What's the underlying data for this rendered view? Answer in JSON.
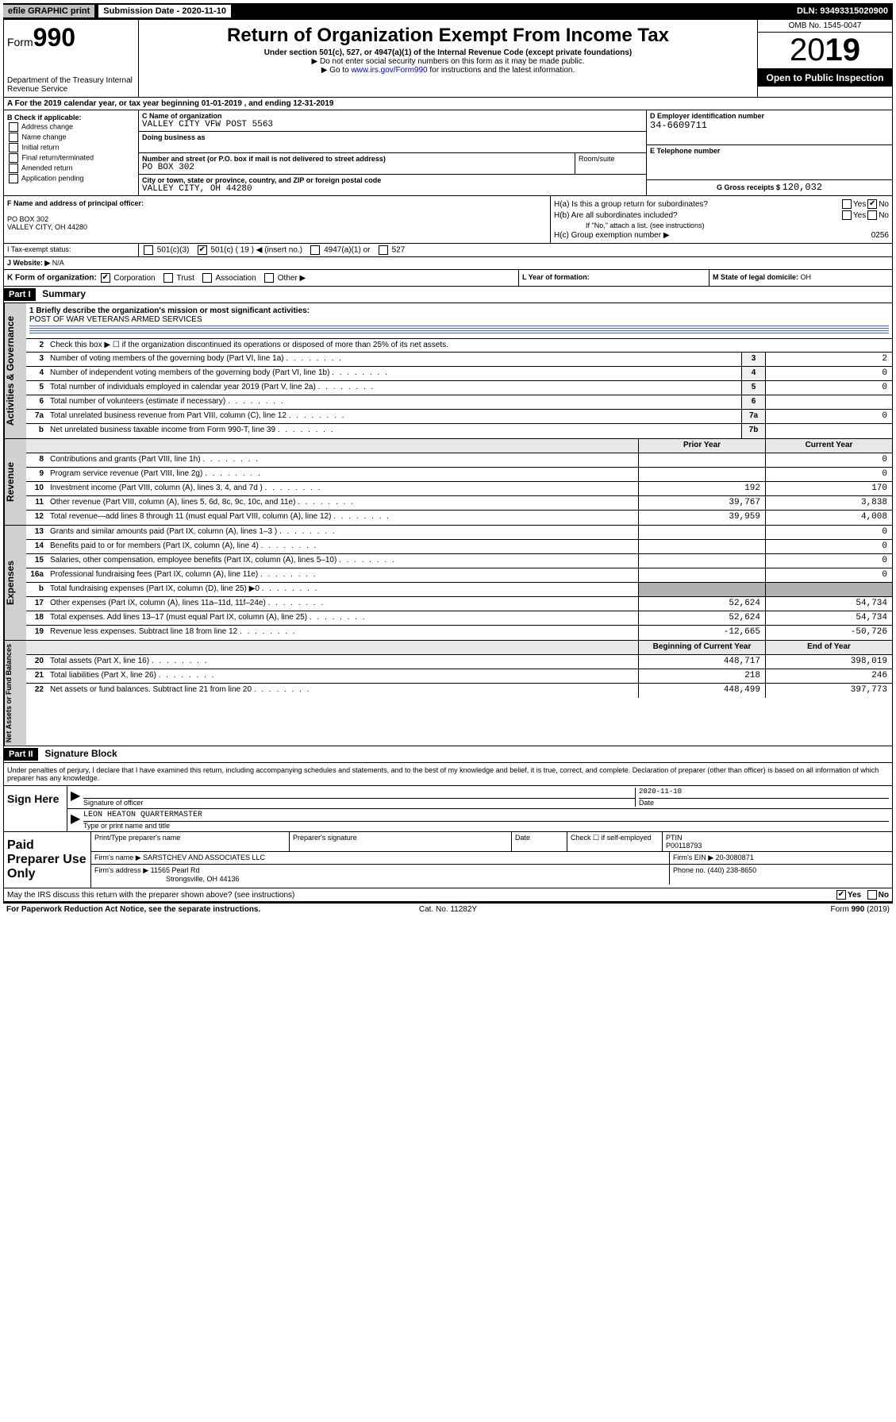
{
  "topbar": {
    "efile": "efile GRAPHIC print",
    "subdate_label": "Submission Date - ",
    "subdate": "2020-11-10",
    "dln_label": "DLN: ",
    "dln": "93493315020900"
  },
  "header": {
    "form_label": "Form",
    "form_num": "990",
    "dept": "Department of the Treasury\nInternal Revenue Service",
    "title": "Return of Organization Exempt From Income Tax",
    "sub": "Under section 501(c), 527, or 4947(a)(1) of the Internal Revenue Code (except private foundations)",
    "sub2a": "▶ Do not enter social security numbers on this form as it may be made public.",
    "sub2b": "▶ Go to www.irs.gov/Form990 for instructions and the latest information.",
    "link": "www.irs.gov/Form990",
    "omb": "OMB No. 1545-0047",
    "year": "2019",
    "inspect": "Open to Public Inspection"
  },
  "row_a": {
    "text_a": "A For the 2019 calendar year, or tax year beginning ",
    "begin": "01-01-2019",
    "text_b": " , and ending ",
    "end": "12-31-2019"
  },
  "col_b": {
    "label": "B Check if applicable:",
    "items": [
      "Address change",
      "Name change",
      "Initial return",
      "Final return/terminated",
      "Amended return",
      "Application pending"
    ]
  },
  "col_c": {
    "name_label": "C Name of organization",
    "name": "VALLEY CITY VFW POST 5563",
    "dba_label": "Doing business as",
    "dba": "",
    "addr_label": "Number and street (or P.O. box if mail is not delivered to street address)",
    "addr": "PO BOX 302",
    "room_label": "Room/suite",
    "city_label": "City or town, state or province, country, and ZIP or foreign postal code",
    "city": "VALLEY CITY, OH  44280"
  },
  "col_d": {
    "label": "D Employer identification number",
    "val": "34-6609711"
  },
  "col_e": {
    "label": "E Telephone number",
    "val": ""
  },
  "col_g": {
    "label": "G Gross receipts $ ",
    "val": "120,032"
  },
  "col_f": {
    "label": "F Name and address of principal officer:",
    "addr1": "PO BOX 302",
    "addr2": "VALLEY CITY, OH  44280"
  },
  "col_h": {
    "ha_label": "H(a)  Is this a group return for subordinates?",
    "ha_yes": "Yes",
    "ha_no": "No",
    "hb_label": "H(b)  Are all subordinates included?",
    "hb_yes": "Yes",
    "hb_no": "No",
    "hb_note": "If \"No,\" attach a list. (see instructions)",
    "hc_label": "H(c)  Group exemption number ▶",
    "hc_val": "0256"
  },
  "row_i": {
    "label": "I Tax-exempt status:",
    "opt1": "501(c)(3)",
    "opt2": "501(c) ( 19 ) ◀ (insert no.)",
    "opt3": "4947(a)(1) or",
    "opt4": "527"
  },
  "row_j": {
    "label": "J Website: ▶",
    "val": "N/A"
  },
  "row_k": {
    "label": "K Form of organization:",
    "opts": [
      "Corporation",
      "Trust",
      "Association",
      "Other ▶"
    ]
  },
  "row_l": {
    "label": "L Year of formation:",
    "val": ""
  },
  "row_m": {
    "label": "M State of legal domicile: ",
    "val": "OH"
  },
  "part1": {
    "hdr": "Part I",
    "title": "Summary"
  },
  "summary": {
    "q1_label": "1  Briefly describe the organization's mission or most significant activities:",
    "q1_val": "POST OF WAR VETERANS ARMED SERVICES",
    "q2": "Check this box ▶ ☐ if the organization discontinued its operations or disposed of more than 25% of its net assets.",
    "rows_gov": [
      {
        "ln": "3",
        "desc": "Number of voting members of the governing body (Part VI, line 1a)",
        "num": "3",
        "val": "2"
      },
      {
        "ln": "4",
        "desc": "Number of independent voting members of the governing body (Part VI, line 1b)",
        "num": "4",
        "val": "0"
      },
      {
        "ln": "5",
        "desc": "Total number of individuals employed in calendar year 2019 (Part V, line 2a)",
        "num": "5",
        "val": "0"
      },
      {
        "ln": "6",
        "desc": "Total number of volunteers (estimate if necessary)",
        "num": "6",
        "val": ""
      },
      {
        "ln": "7a",
        "desc": "Total unrelated business revenue from Part VIII, column (C), line 12",
        "num": "7a",
        "val": "0"
      },
      {
        "ln": "b",
        "desc": "Net unrelated business taxable income from Form 990-T, line 39",
        "num": "7b",
        "val": ""
      }
    ],
    "hdr_prior": "Prior Year",
    "hdr_curr": "Current Year",
    "rows_rev": [
      {
        "ln": "8",
        "desc": "Contributions and grants (Part VIII, line 1h)",
        "prior": "",
        "curr": "0"
      },
      {
        "ln": "9",
        "desc": "Program service revenue (Part VIII, line 2g)",
        "prior": "",
        "curr": "0"
      },
      {
        "ln": "10",
        "desc": "Investment income (Part VIII, column (A), lines 3, 4, and 7d )",
        "prior": "192",
        "curr": "170"
      },
      {
        "ln": "11",
        "desc": "Other revenue (Part VIII, column (A), lines 5, 6d, 8c, 9c, 10c, and 11e)",
        "prior": "39,767",
        "curr": "3,838"
      },
      {
        "ln": "12",
        "desc": "Total revenue—add lines 8 through 11 (must equal Part VIII, column (A), line 12)",
        "prior": "39,959",
        "curr": "4,008"
      }
    ],
    "rows_exp": [
      {
        "ln": "13",
        "desc": "Grants and similar amounts paid (Part IX, column (A), lines 1–3 )",
        "prior": "",
        "curr": "0"
      },
      {
        "ln": "14",
        "desc": "Benefits paid to or for members (Part IX, column (A), line 4)",
        "prior": "",
        "curr": "0"
      },
      {
        "ln": "15",
        "desc": "Salaries, other compensation, employee benefits (Part IX, column (A), lines 5–10)",
        "prior": "",
        "curr": "0"
      },
      {
        "ln": "16a",
        "desc": "Professional fundraising fees (Part IX, column (A), line 11e)",
        "prior": "",
        "curr": "0"
      },
      {
        "ln": "b",
        "desc": "Total fundraising expenses (Part IX, column (D), line 25) ▶0",
        "prior": "SHADE",
        "curr": "SHADE"
      },
      {
        "ln": "17",
        "desc": "Other expenses (Part IX, column (A), lines 11a–11d, 11f–24e)",
        "prior": "52,624",
        "curr": "54,734"
      },
      {
        "ln": "18",
        "desc": "Total expenses. Add lines 13–17 (must equal Part IX, column (A), line 25)",
        "prior": "52,624",
        "curr": "54,734"
      },
      {
        "ln": "19",
        "desc": "Revenue less expenses. Subtract line 18 from line 12",
        "prior": "-12,665",
        "curr": "-50,726"
      }
    ],
    "hdr_begin": "Beginning of Current Year",
    "hdr_end": "End of Year",
    "rows_net": [
      {
        "ln": "20",
        "desc": "Total assets (Part X, line 16)",
        "prior": "448,717",
        "curr": "398,019"
      },
      {
        "ln": "21",
        "desc": "Total liabilities (Part X, line 26)",
        "prior": "218",
        "curr": "246"
      },
      {
        "ln": "22",
        "desc": "Net assets or fund balances. Subtract line 21 from line 20",
        "prior": "448,499",
        "curr": "397,773"
      }
    ],
    "side_gov": "Activities & Governance",
    "side_rev": "Revenue",
    "side_exp": "Expenses",
    "side_net": "Net Assets or Fund Balances"
  },
  "part2": {
    "hdr": "Part II",
    "title": "Signature Block",
    "decl": "Under penalties of perjury, I declare that I have examined this return, including accompanying schedules and statements, and to the best of my knowledge and belief, it is true, correct, and complete. Declaration of preparer (other than officer) is based on all information of which preparer has any knowledge."
  },
  "sign": {
    "label": "Sign Here",
    "sig_label": "Signature of officer",
    "date_label": "Date",
    "date_val": "2020-11-10",
    "name_val": "LEON HEATON QUARTERMASTER",
    "name_label": "Type or print name and title"
  },
  "paid": {
    "label": "Paid Preparer Use Only",
    "h1": "Print/Type preparer's name",
    "h2": "Preparer's signature",
    "h3": "Date",
    "h4a": "Check ☐ if self-employed",
    "h4b_label": "PTIN",
    "h4b_val": "P00118793",
    "firm_name_label": "Firm's name    ▶",
    "firm_name": "SARSTCHEV AND ASSOCIATES LLC",
    "firm_ein_label": "Firm's EIN ▶",
    "firm_ein": "20-3080871",
    "firm_addr_label": "Firm's address ▶",
    "firm_addr1": "11565 Pearl Rd",
    "firm_addr2": "Strongsville, OH  44136",
    "phone_label": "Phone no. ",
    "phone": "(440) 238-8650"
  },
  "discuss": {
    "text": "May the IRS discuss this return with the preparer shown above? (see instructions)",
    "yes": "Yes",
    "no": "No"
  },
  "footer": {
    "left": "For Paperwork Reduction Act Notice, see the separate instructions.",
    "mid": "Cat. No. 11282Y",
    "right": "Form 990 (2019)"
  }
}
